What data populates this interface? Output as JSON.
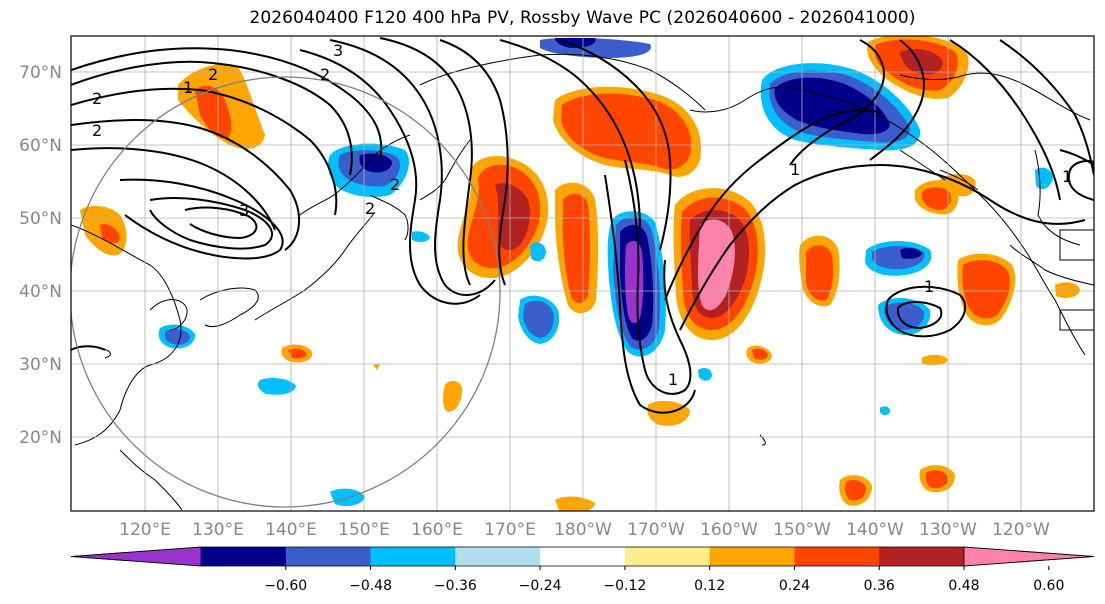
{
  "title": "2026040400 F120 400 hPa PV, Rossby Wave PC (2026040600 - 2026041000)",
  "longitude_labels": [
    "120°E",
    "130°E",
    "140°E",
    "150°E",
    "160°E",
    "170°E",
    "180°W",
    "170°W",
    "160°W",
    "150°W",
    "140°W",
    "130°W",
    "120°W"
  ],
  "latitude_labels": [
    "70°N",
    "60°N",
    "50°N",
    "40°N",
    "30°N",
    "20°N"
  ],
  "contour_labels": [
    "1",
    "2",
    "2",
    "3",
    "2",
    "3",
    "2",
    "2",
    "2",
    "1",
    "1",
    "1",
    "1"
  ],
  "colorbar": {
    "tick_labels": [
      "−0.60",
      "−0.48",
      "−0.36",
      "−0.24",
      "−0.12",
      "0.12",
      "0.24",
      "0.36",
      "0.48",
      "0.60"
    ],
    "colors": [
      "#9a32cd",
      "#00008b",
      "#3a5fcd",
      "#00bfff",
      "#b2dfee",
      "#ffffff",
      "#ffec8b",
      "#ffa500",
      "#ff4500",
      "#b22222",
      "#ff82ab"
    ]
  },
  "colors": {
    "neg_060": "#9a32cd",
    "neg_048": "#00008b",
    "neg_036": "#3a5fcd",
    "neg_024": "#00bfff",
    "neg_012": "#b2dfee",
    "pos_012": "#ffec8b",
    "pos_024": "#ffa500",
    "pos_036": "#ff4500",
    "pos_048": "#b22222",
    "pos_060": "#ff82ab",
    "grid": "#b0b0b0",
    "contour": "#000000"
  }
}
